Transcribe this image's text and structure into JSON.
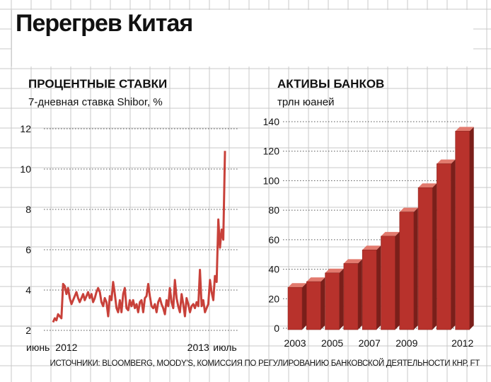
{
  "title": "Перегрев Китая",
  "source": "ИСТОЧНИКИ: BLOOMBERG, MOODY'S, КОМИССИЯ ПО РЕГУЛИРОВАНИЮ БАНКОВСКОЙ ДЕЯТЕЛЬНОСТИ КНР, FT",
  "colors": {
    "line": "#c8413a",
    "bar_front": "#b8322c",
    "bar_top": "#e27a6e",
    "bar_side": "#7a1f1a",
    "grid": "#c9c9c9"
  },
  "chart_data": [
    {
      "type": "line",
      "title": "ПРОЦЕНТНЫЕ СТАВКИ",
      "subtitle": "7-дневная ставка Shibor, %",
      "y_ticks": [
        2,
        4,
        6,
        8,
        10,
        12
      ],
      "ylim": [
        2,
        12
      ],
      "x_tick_labels": [
        "июнь",
        "2012",
        "2013",
        "июль"
      ],
      "x_tick_index": [
        0,
        8,
        87,
        103
      ],
      "grid": true,
      "series": [
        {
          "values": [
            2.4,
            2.6,
            2.5,
            2.8,
            2.7,
            2.6,
            4.3,
            4.2,
            3.8,
            4.1,
            3.6,
            3.3,
            3.5,
            3.7,
            3.9,
            3.6,
            3.4,
            3.6,
            3.8,
            3.5,
            3.7,
            3.9,
            3.6,
            3.8,
            3.4,
            3.6,
            3.9,
            4.1,
            3.9,
            3.4,
            3.2,
            3.6,
            3.4,
            2.7,
            3.7,
            3.5,
            4.4,
            3.8,
            3.1,
            2.9,
            3.5,
            2.9,
            3.8,
            4.1,
            3.1,
            3.0,
            3.5,
            3.2,
            3.5,
            3.1,
            3.3,
            2.9,
            3.4,
            3.5,
            2.9,
            3.6,
            3.7,
            4.3,
            3.7,
            3.2,
            3.1,
            3.3,
            2.9,
            3.4,
            3.6,
            3.3,
            3.1,
            2.8,
            3.5,
            3.2,
            4.1,
            3.4,
            3.1,
            4.5,
            3.6,
            3.2,
            2.9,
            3.8,
            3.3,
            2.7,
            3.6,
            3.3,
            2.9,
            3.2,
            3.3,
            3.1,
            3.4,
            3.2,
            5.0,
            3.2,
            3.5,
            2.9,
            3.1,
            3.3,
            4.5,
            3.9,
            3.5,
            4.7,
            4.4,
            7.5,
            6.1,
            7.0,
            6.5,
            10.9
          ]
        }
      ]
    },
    {
      "type": "bar",
      "title": "АКТИВЫ БАНКОВ",
      "subtitle": "трлн юаней",
      "categories": [
        "2003",
        "2004",
        "2005",
        "2006",
        "2007",
        "2008",
        "2009",
        "2010",
        "2011",
        "2012"
      ],
      "x_tick_labels": [
        "2003",
        "2005",
        "2007",
        "2009",
        "2012"
      ],
      "values": [
        27.7,
        31.6,
        37.5,
        43.9,
        53.1,
        62.4,
        78.8,
        95.3,
        111.5,
        133.6
      ],
      "y_ticks": [
        0,
        20,
        40,
        60,
        80,
        100,
        120,
        140
      ],
      "ylim": [
        0,
        140
      ],
      "grid": true
    }
  ]
}
